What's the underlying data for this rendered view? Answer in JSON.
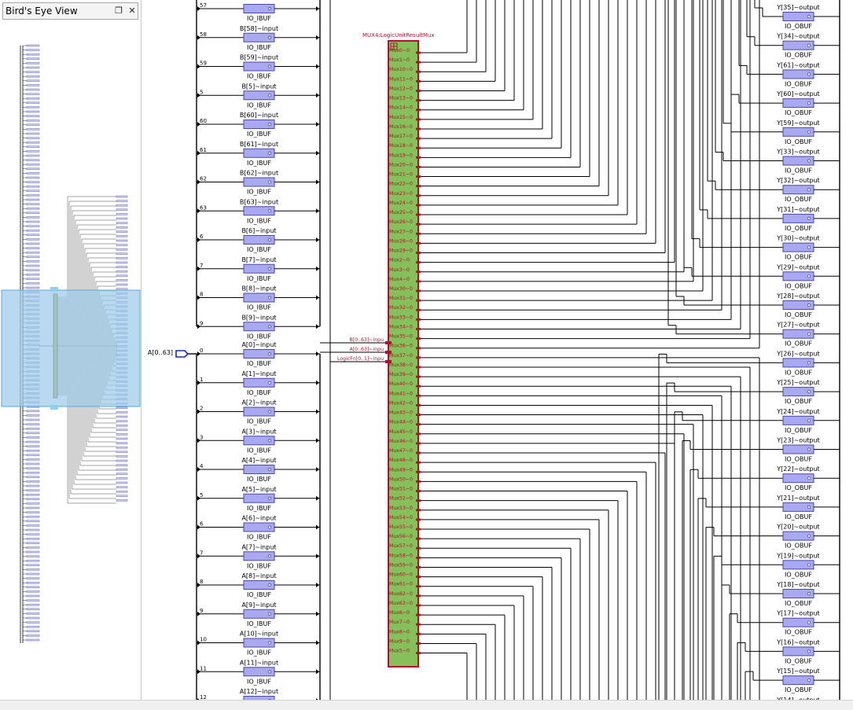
{
  "birds_eye": {
    "title": "Bird's Eye View",
    "restore_label": "❐",
    "close_label": "✕"
  },
  "mux": {
    "title": "MUX4:LogicUnitResultMux",
    "inputs": [
      "B[0..63]~inpu",
      "A[0..63]~inpu",
      "LogicFn[0..1]~inpu"
    ],
    "outputs": [
      "Mux0~0",
      "Mux1~0",
      "Mux10~0",
      "Mux11~0",
      "Mux12~0",
      "Mux13~0",
      "Mux14~0",
      "Mux15~0",
      "Mux16~0",
      "Mux17~0",
      "Mux18~0",
      "Mux19~0",
      "Mux20~0",
      "Mux21~0",
      "Mux22~0",
      "Mux23~0",
      "Mux24~0",
      "Mux25~0",
      "Mux26~0",
      "Mux27~0",
      "Mux28~0",
      "Mux29~0",
      "Mux2~0",
      "Mux3~0",
      "Mux4~0",
      "Mux30~0",
      "Mux31~0",
      "Mux32~0",
      "Mux33~0",
      "Mux34~0",
      "Mux35~0",
      "Mux36~0",
      "Mux37~0",
      "Mux38~0",
      "Mux39~0",
      "Mux40~0",
      "Mux41~0",
      "Mux42~0",
      "Mux43~0",
      "Mux44~0",
      "Mux45~0",
      "Mux46~0",
      "Mux47~0",
      "Mux48~0",
      "Mux49~0",
      "Mux50~0",
      "Mux51~0",
      "Mux52~0",
      "Mux53~0",
      "Mux54~0",
      "Mux55~0",
      "Mux56~0",
      "Mux57~0",
      "Mux58~0",
      "Mux59~0",
      "Mux60~0",
      "Mux61~0",
      "Mux62~0",
      "Mux63~0",
      "Mux6~0",
      "Mux7~0",
      "Mux8~0",
      "Mux9~0",
      "Mux5~0"
    ]
  },
  "port_a": {
    "label": "A[0..63]"
  },
  "ibuf_type": "IO_IBUF",
  "obuf_type": "IO_OBUF",
  "b_buffers": [
    {
      "bit": "57",
      "name": ""
    },
    {
      "bit": "58",
      "name": "B[58]~input"
    },
    {
      "bit": "59",
      "name": "B[59]~input"
    },
    {
      "bit": "5",
      "name": "B[5]~input"
    },
    {
      "bit": "60",
      "name": "B[60]~input"
    },
    {
      "bit": "61",
      "name": "B[61]~input"
    },
    {
      "bit": "62",
      "name": "B[62]~input"
    },
    {
      "bit": "63",
      "name": "B[63]~input"
    },
    {
      "bit": "6",
      "name": "B[6]~input"
    },
    {
      "bit": "7",
      "name": "B[7]~input"
    },
    {
      "bit": "8",
      "name": "B[8]~input"
    },
    {
      "bit": "9",
      "name": "B[9]~input"
    }
  ],
  "a_buffers": [
    {
      "bit": "0",
      "name": "A[0]~input"
    },
    {
      "bit": "1",
      "name": "A[1]~input"
    },
    {
      "bit": "2",
      "name": "A[2]~input"
    },
    {
      "bit": "3",
      "name": "A[3]~input"
    },
    {
      "bit": "4",
      "name": "A[4]~input"
    },
    {
      "bit": "5",
      "name": "A[5]~input"
    },
    {
      "bit": "6",
      "name": "A[6]~input"
    },
    {
      "bit": "7",
      "name": "A[7]~input"
    },
    {
      "bit": "8",
      "name": "A[8]~input"
    },
    {
      "bit": "9",
      "name": "A[9]~input"
    },
    {
      "bit": "10",
      "name": "A[10]~input"
    },
    {
      "bit": "11",
      "name": "A[11]~input"
    },
    {
      "bit": "12",
      "name": "A[12]~input"
    }
  ],
  "y_outputs": [
    "Y[35]~output",
    "Y[34]~output",
    "Y[61]~output",
    "Y[60]~output",
    "Y[59]~output",
    "Y[33]~output",
    "Y[32]~output",
    "Y[31]~output",
    "Y[30]~output",
    "Y[29]~output",
    "Y[28]~output",
    "Y[27]~output",
    "Y[26]~output",
    "Y[25]~output",
    "Y[24]~output",
    "Y[23]~output",
    "Y[22]~output",
    "Y[21]~output",
    "Y[20]~output",
    "Y[19]~output",
    "Y[18]~output",
    "Y[17]~output",
    "Y[16]~output",
    "Y[15]~output",
    "Y[14]~output"
  ],
  "colors": {
    "mux_fill": "#86c05a",
    "mux_border": "#b01030",
    "mux_text": "#b01030",
    "buffer_fill": "#a9a9f2",
    "buffer_border": "#4a4aa8",
    "wire": "#000000",
    "port": "#1a2aa8",
    "viewport": "#9ccbe9"
  }
}
